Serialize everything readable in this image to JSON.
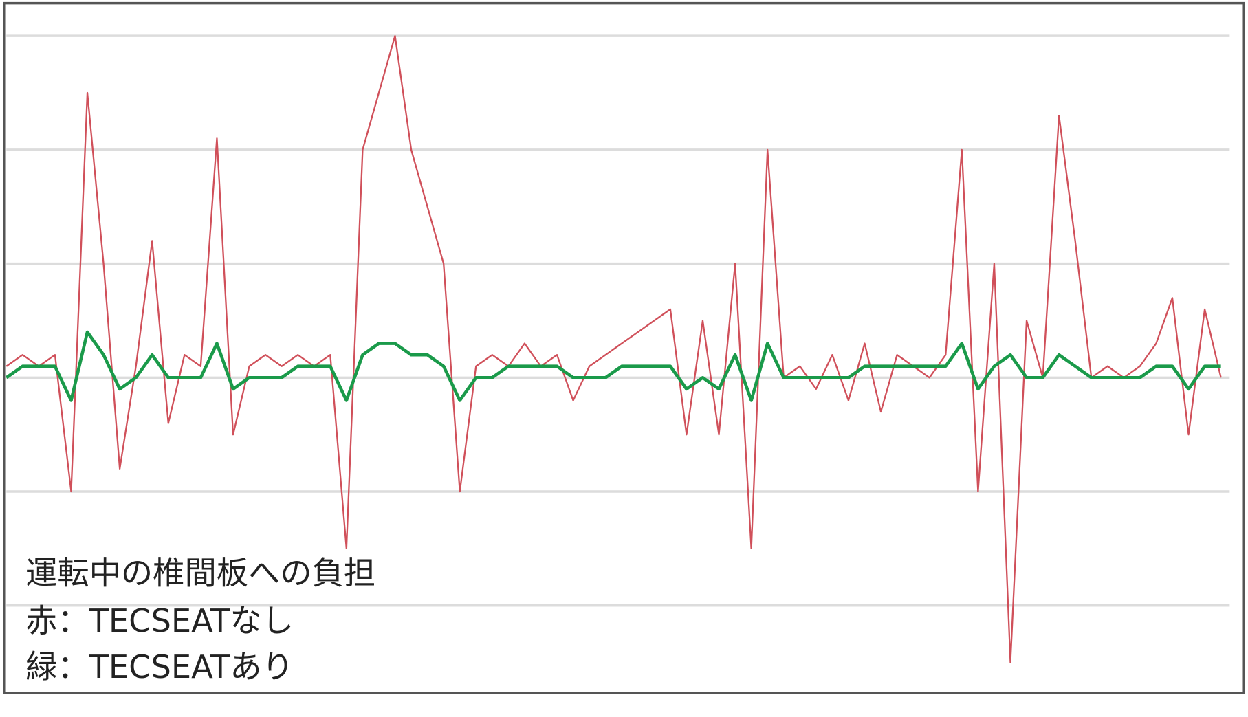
{
  "chart_data": {
    "type": "line",
    "title": "",
    "xlabel": "",
    "ylabel": "",
    "grid": true,
    "gridlines": [
      3,
      2,
      1,
      0,
      -1,
      -2
    ],
    "ylim": [
      -2.77,
      3.3
    ],
    "annotation": {
      "line1": "運転中の椎間板への負担",
      "line2": "赤：TECSEATなし",
      "line3": "緑：TECSEATあり"
    },
    "series": [
      {
        "color": "#d0505a",
        "values": [
          0.1,
          0.2,
          0.1,
          0.2,
          -1.0,
          2.5,
          1.0,
          -0.8,
          0.1,
          1.2,
          -0.4,
          0.2,
          0.1,
          2.1,
          -0.5,
          0.1,
          0.2,
          0.1,
          0.2,
          0.1,
          0.2,
          -1.5,
          2.0,
          2.5,
          3.0,
          2.0,
          1.5,
          1.0,
          -1.0,
          0.1,
          0.2,
          0.1,
          0.3,
          0.1,
          0.2,
          -0.2,
          0.1,
          0.2,
          0.3,
          0.4,
          0.5,
          0.6,
          -0.5,
          0.5,
          -0.5,
          1.0,
          -1.5,
          2.0,
          0,
          0.1,
          -0.1,
          0.2,
          -0.2,
          0.3,
          -0.3,
          0.2,
          0.1,
          0,
          0.2,
          2.0,
          -1.0,
          1.0,
          -2.5,
          0.5,
          0,
          2.3,
          1.2,
          0,
          0.1,
          0,
          0.1,
          0.3,
          0.7,
          -0.5,
          0.6,
          0
        ]
      },
      {
        "color": "#1a9a4a",
        "values": [
          0,
          0.1,
          0.1,
          0.1,
          -0.2,
          0.4,
          0.2,
          -0.1,
          0,
          0.2,
          0,
          0,
          0,
          0.3,
          -0.1,
          0,
          0,
          0,
          0.1,
          0.1,
          0.1,
          -0.2,
          0.2,
          0.3,
          0.3,
          0.2,
          0.2,
          0.1,
          -0.2,
          0,
          0,
          0.1,
          0.1,
          0.1,
          0.1,
          0,
          0,
          0,
          0.1,
          0.1,
          0.1,
          0.1,
          -0.1,
          0,
          -0.1,
          0.2,
          -0.2,
          0.3,
          0,
          0,
          0,
          0,
          0,
          0.1,
          0.1,
          0.1,
          0.1,
          0.1,
          0.1,
          0.3,
          -0.1,
          0.1,
          0.2,
          0,
          0,
          0.2,
          0.1,
          0,
          0,
          0,
          0,
          0.1,
          0.1,
          -0.1,
          0.1,
          0.1
        ]
      }
    ]
  }
}
